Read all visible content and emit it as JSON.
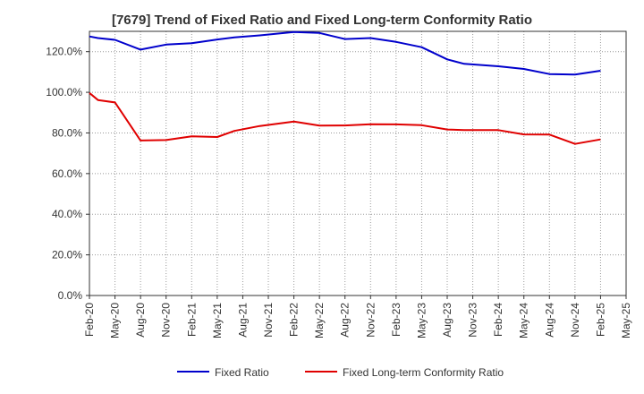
{
  "chart_data": {
    "type": "line",
    "title": "[7679]  Trend of Fixed Ratio and Fixed Long-term Conformity Ratio",
    "xlabel": "",
    "ylabel": "",
    "ylim": [
      0,
      130
    ],
    "yticks": [
      0,
      20,
      40,
      60,
      80,
      100,
      120
    ],
    "ytick_labels": [
      "0.0%",
      "20.0%",
      "40.0%",
      "60.0%",
      "80.0%",
      "100.0%",
      "120.0%"
    ],
    "categories": [
      "Feb-20",
      "May-20",
      "Aug-20",
      "Nov-20",
      "Feb-21",
      "May-21",
      "Aug-21",
      "Nov-21",
      "Feb-22",
      "May-22",
      "Aug-22",
      "Nov-22",
      "Feb-23",
      "May-23",
      "Aug-23",
      "Nov-23",
      "Feb-24",
      "May-24",
      "Aug-24",
      "Nov-24",
      "Feb-25",
      "May-25"
    ],
    "x": [
      "Feb-20",
      "Mar-20",
      "May-20",
      "Aug-20",
      "Nov-20",
      "Feb-21",
      "May-21",
      "Jul-21",
      "Oct-21",
      "Feb-22",
      "May-22",
      "Aug-22",
      "Nov-22",
      "Feb-23",
      "May-23",
      "Aug-23",
      "Oct-23",
      "Feb-24",
      "May-24",
      "Aug-24",
      "Nov-24",
      "Feb-25"
    ],
    "series": [
      {
        "name": "Fixed Ratio",
        "color": "#0000cc",
        "values": [
          127.5,
          126.7,
          125.8,
          121.0,
          123.5,
          124.2,
          126.0,
          127.0,
          128.0,
          129.7,
          129.2,
          126.2,
          126.7,
          124.8,
          122.2,
          116.2,
          114.0,
          112.8,
          111.5,
          109.0,
          108.7,
          110.6
        ]
      },
      {
        "name": "Fixed Long-term Conformity Ratio",
        "color": "#e00000",
        "values": [
          99.7,
          96.2,
          95.0,
          76.3,
          76.5,
          78.3,
          78.0,
          81.0,
          83.4,
          85.6,
          83.6,
          83.7,
          84.3,
          84.2,
          83.8,
          81.7,
          81.4,
          81.4,
          79.3,
          79.2,
          74.6,
          76.8
        ]
      }
    ],
    "grid": true,
    "legend": "bottom"
  }
}
